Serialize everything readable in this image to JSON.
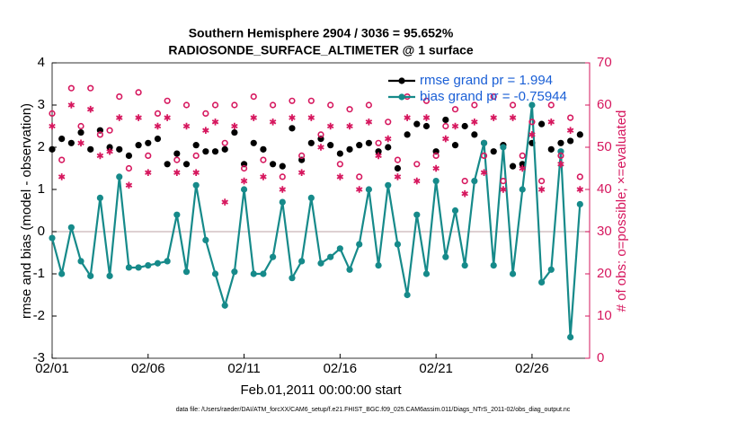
{
  "chart_data": {
    "type": "line",
    "title": "Southern Hemisphere 2904 / 3036 = 95.652%",
    "subtitle": "RADIOSONDE_SURFACE_ALTIMETER @ 1 surface",
    "xlabel": "Feb.01,2011 00:00:00 start",
    "ylabel": "rmse and bias (model - observation)",
    "y2label": "# of obs: o=possible; ×=evaluated",
    "footnote": "data file: /Users/raeder/DAI/ATM_forcXX/CAM6_setup/f.e21.FHIST_BGC.f09_025.CAM6assim.011/Diags_NTrS_2011-02/obs_diag_output.nc",
    "x": [
      0,
      0.5,
      1,
      1.5,
      2,
      2.5,
      3,
      3.5,
      4,
      4.5,
      5,
      5.5,
      6,
      6.5,
      7,
      7.5,
      8,
      8.5,
      9,
      9.5,
      10,
      10.5,
      11,
      11.5,
      12,
      12.5,
      13,
      13.5,
      14,
      14.5,
      15,
      15.5,
      16,
      16.5,
      17,
      17.5,
      18,
      18.5,
      19,
      19.5,
      20,
      20.5,
      21,
      21.5,
      22,
      22.5,
      23,
      23.5,
      24,
      24.5,
      25,
      25.5,
      26,
      26.5,
      27,
      27.5
    ],
    "xlim": [
      0,
      28
    ],
    "xticks": [
      {
        "value": 0,
        "label": "02/01"
      },
      {
        "value": 5,
        "label": "02/06"
      },
      {
        "value": 10,
        "label": "02/11"
      },
      {
        "value": 15,
        "label": "02/16"
      },
      {
        "value": 20,
        "label": "02/21"
      },
      {
        "value": 25,
        "label": "02/26"
      }
    ],
    "ylim": [
      -3,
      4
    ],
    "yticks": [
      -3,
      -2,
      -1,
      0,
      1,
      2,
      3,
      4
    ],
    "y2lim": [
      0,
      70
    ],
    "y2ticks": [
      0,
      10,
      20,
      30,
      40,
      50,
      60,
      70
    ],
    "zero_line": true,
    "legend": "top-right",
    "series": [
      {
        "name": "rmse grand pr = 1.994",
        "color": "#000000",
        "marker": "dot",
        "connect": false,
        "values": [
          1.95,
          2.2,
          2.1,
          2.35,
          1.95,
          2.4,
          2.0,
          1.95,
          1.8,
          2.05,
          2.1,
          2.2,
          1.6,
          1.85,
          1.6,
          2.05,
          1.9,
          1.9,
          1.95,
          2.35,
          1.6,
          2.1,
          1.95,
          1.6,
          1.55,
          2.45,
          1.7,
          2.1,
          2.2,
          2.05,
          1.85,
          1.95,
          2.05,
          2.1,
          1.9,
          2.0,
          1.5,
          2.3,
          2.55,
          2.5,
          1.9,
          2.65,
          2.05,
          2.5,
          2.3,
          2.1,
          1.9,
          2.05,
          1.55,
          1.6,
          2.1,
          2.55,
          1.95,
          2.1,
          2.15,
          2.3
        ]
      },
      {
        "name": "bias grand pr = -0.75944",
        "color": "#168a8a",
        "marker": "dot",
        "connect": true,
        "values": [
          -0.15,
          -1.0,
          0.1,
          -0.7,
          -1.05,
          0.8,
          -1.05,
          1.3,
          -0.85,
          -0.85,
          -0.8,
          -0.75,
          -0.7,
          0.4,
          -0.95,
          1.1,
          -0.2,
          -1.0,
          -1.75,
          -0.95,
          1.0,
          -1.0,
          -1.0,
          -0.6,
          0.7,
          -1.1,
          -0.7,
          0.8,
          -0.75,
          -0.6,
          -0.4,
          -0.9,
          -0.3,
          1.0,
          -0.8,
          1.1,
          -0.3,
          -1.5,
          0.4,
          -1.0,
          1.2,
          -0.6,
          0.5,
          -0.8,
          1.2,
          2.1,
          -0.8,
          2.0,
          -1.0,
          1.0,
          3.0,
          -1.2,
          -0.9,
          1.9,
          -2.5,
          0.65
        ]
      },
      {
        "color": "#d6175e",
        "marker": "circle",
        "axis": "y2",
        "connect": false,
        "values": [
          58,
          47,
          64,
          55,
          64,
          53,
          54,
          62,
          45,
          63,
          48,
          58,
          61,
          47,
          60,
          48,
          58,
          60,
          51,
          60,
          45,
          62,
          47,
          60,
          43,
          61,
          48,
          61,
          53,
          60,
          46,
          59,
          43,
          60,
          51,
          56,
          47,
          62,
          46,
          61,
          48,
          55,
          59,
          42,
          60,
          48,
          62,
          42,
          60,
          48,
          56,
          42,
          60,
          48,
          57,
          43
        ]
      },
      {
        "color": "#d6175e",
        "marker": "asterisk",
        "axis": "y2",
        "connect": false,
        "values": [
          55,
          43,
          60,
          51,
          59,
          48,
          49,
          57,
          41,
          57,
          44,
          55,
          57,
          44,
          55,
          44,
          54,
          56,
          37,
          55,
          42,
          57,
          43,
          56,
          40,
          57,
          44,
          57,
          50,
          55,
          43,
          55,
          40,
          56,
          48,
          52,
          43,
          57,
          42,
          57,
          45,
          52,
          55,
          39,
          56,
          44,
          57,
          40,
          57,
          45,
          53,
          40,
          56,
          46,
          54,
          40
        ]
      }
    ]
  }
}
